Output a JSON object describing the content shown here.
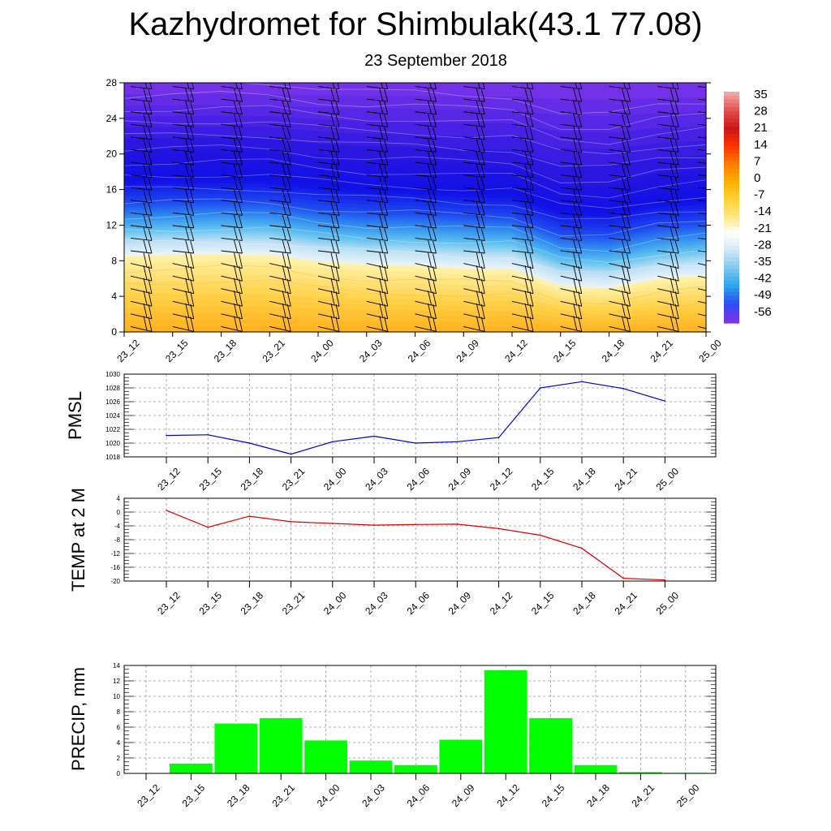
{
  "title": "Kazhydromet for Shimbulak(43.1 77.08)",
  "subtitle": "23 September 2018",
  "time_labels": [
    "23_12",
    "23_15",
    "23_18",
    "23_21",
    "24_00",
    "24_03",
    "24_06",
    "24_09",
    "24_12",
    "24_15",
    "24_18",
    "24_21",
    "25_00"
  ],
  "chart_data": [
    {
      "type": "heatmap",
      "title": "",
      "ylabel": "",
      "xlabel": "",
      "x": [
        "23_12",
        "23_15",
        "23_18",
        "23_21",
        "24_00",
        "24_03",
        "24_06",
        "24_09",
        "24_12",
        "24_15",
        "24_18",
        "24_21",
        "25_00"
      ],
      "ylim": [
        0,
        28
      ],
      "yticks": [
        0,
        4,
        8,
        12,
        16,
        20,
        24,
        28
      ],
      "freezing_level_height": [
        8.5,
        8.6,
        8.7,
        8.6,
        7.9,
        7.5,
        7.4,
        7.1,
        7.0,
        5.1,
        4.9,
        5.9,
        6.3
      ],
      "colorbar": {
        "labels": [
          35,
          28,
          21,
          14,
          7,
          0,
          -7,
          -14,
          -21,
          -28,
          -35,
          -42,
          -49,
          -56
        ],
        "colors": [
          "#f1a5a5",
          "#e34b4b",
          "#cc1515",
          "#ff3300",
          "#ff7a00",
          "#ffae00",
          "#ffd030",
          "#ffe680",
          "#ffffff",
          "#cfe6f6",
          "#7cc6f0",
          "#2aa5ec",
          "#2b4ef5",
          "#7a33e9"
        ]
      },
      "grid": false,
      "barbs": true
    },
    {
      "type": "line",
      "ylabel": "PMSL",
      "categories": [
        "23_12",
        "23_15",
        "23_18",
        "23_21",
        "24_00",
        "24_03",
        "24_06",
        "24_09",
        "24_12",
        "24_15",
        "24_18",
        "24_21",
        "25_00"
      ],
      "values": [
        1021.1,
        1021.2,
        1020.0,
        1018.4,
        1020.2,
        1021.0,
        1020.0,
        1020.2,
        1020.8,
        1028.0,
        1028.9,
        1027.9,
        1026.1
      ],
      "ylim": [
        1018,
        1030
      ],
      "yticks": [
        1018,
        1020,
        1022,
        1024,
        1026,
        1028,
        1030
      ],
      "color": "#0000cc",
      "grid": true
    },
    {
      "type": "line",
      "ylabel": "TEMP at 2 M",
      "categories": [
        "23_12",
        "23_15",
        "23_18",
        "23_21",
        "24_00",
        "24_03",
        "24_06",
        "24_09",
        "24_12",
        "24_15",
        "24_18",
        "24_21",
        "25_00"
      ],
      "values": [
        0.5,
        -4.4,
        -1.2,
        -2.8,
        -3.3,
        -3.8,
        -3.6,
        -3.5,
        -4.8,
        -6.7,
        -10.5,
        -19.2,
        -19.7
      ],
      "ylim": [
        -20,
        4
      ],
      "yticks": [
        -20,
        -16,
        -12,
        -8,
        -4,
        0,
        4
      ],
      "color": "#dd0000",
      "grid": true
    },
    {
      "type": "bar",
      "ylabel": "PRECIP, mm",
      "categories": [
        "23_12",
        "23_15",
        "23_18",
        "23_21",
        "24_00",
        "24_03",
        "24_06",
        "24_09",
        "24_12",
        "24_15",
        "24_18",
        "24_21",
        "25_00"
      ],
      "values": [
        0,
        1.3,
        6.5,
        7.2,
        4.3,
        1.7,
        1.1,
        4.4,
        13.4,
        7.2,
        1.1,
        0.2,
        0.1
      ],
      "ylim": [
        0,
        14
      ],
      "yticks": [
        0,
        2,
        4,
        6,
        8,
        10,
        12,
        14
      ],
      "color": "#00ff00",
      "grid": true
    }
  ]
}
